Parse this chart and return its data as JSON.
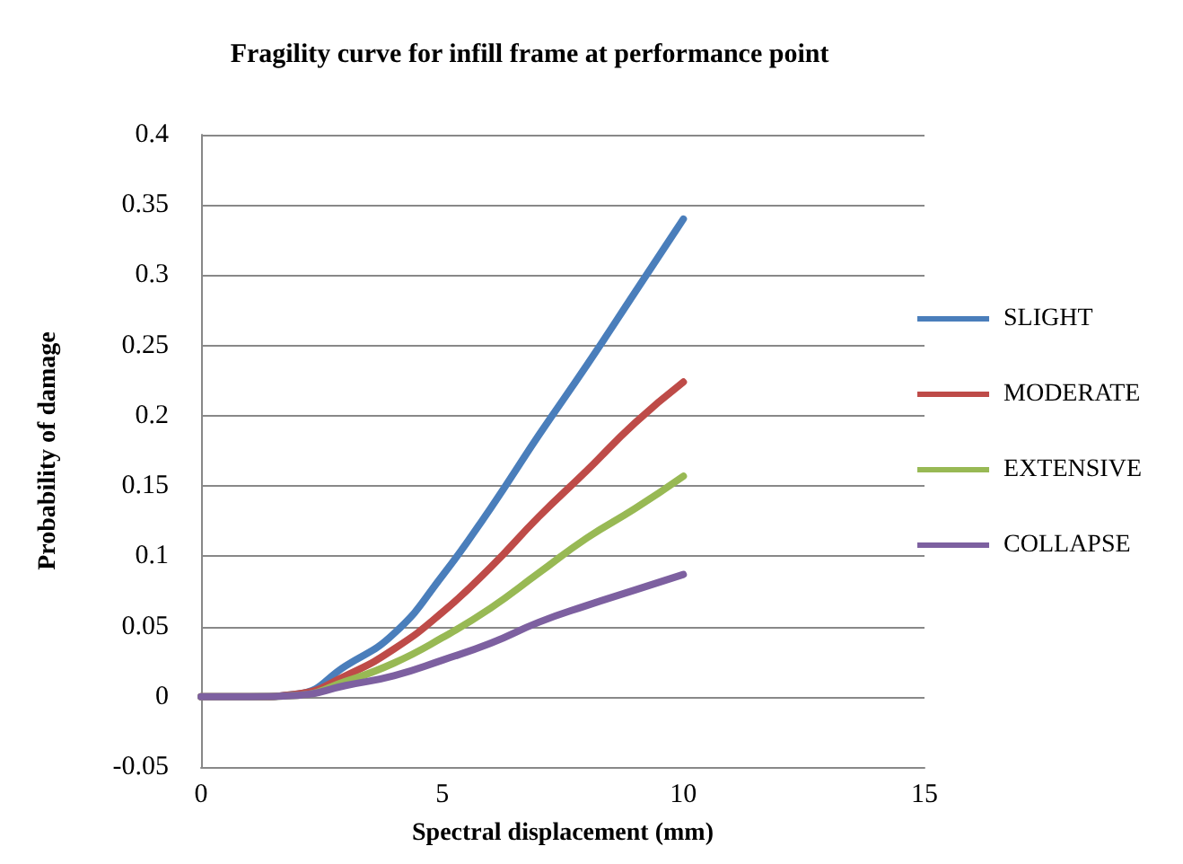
{
  "chart_data": {
    "type": "line",
    "title": "Fragility curve for infill frame at performance point",
    "xlabel": "Spectral displacement (mm)",
    "ylabel": "Probability of damage",
    "x": [
      0,
      1,
      2,
      3,
      4,
      5,
      6,
      7,
      8,
      9,
      10
    ],
    "series": [
      {
        "name": "SLIGHT",
        "color": "#4a7ebb",
        "values": [
          0,
          0,
          0.002,
          0.022,
          0.045,
          0.086,
          0.134,
          0.186,
          0.236,
          0.288,
          0.34
        ]
      },
      {
        "name": "MODERATE",
        "color": "#be4b48",
        "values": [
          0,
          0,
          0.002,
          0.015,
          0.034,
          0.06,
          0.092,
          0.128,
          0.161,
          0.195,
          0.224
        ]
      },
      {
        "name": "EXTENSIVE",
        "color": "#98b954",
        "values": [
          0,
          0,
          0.001,
          0.011,
          0.024,
          0.042,
          0.063,
          0.088,
          0.113,
          0.134,
          0.157
        ]
      },
      {
        "name": "COLLAPSE",
        "color": "#7d60a0",
        "values": [
          0,
          0,
          0.001,
          0.008,
          0.015,
          0.026,
          0.038,
          0.053,
          0.065,
          0.076,
          0.087
        ]
      }
    ],
    "xlim": [
      0,
      15
    ],
    "xticks": [
      0,
      5,
      10,
      15
    ],
    "ylim": [
      -0.05,
      0.4
    ],
    "yticks": [
      -0.05,
      0,
      0.05,
      0.1,
      0.15,
      0.2,
      0.25,
      0.3,
      0.35,
      0.4
    ],
    "grid": "y",
    "legend": "right",
    "marker": "none",
    "line_style": "solid"
  }
}
